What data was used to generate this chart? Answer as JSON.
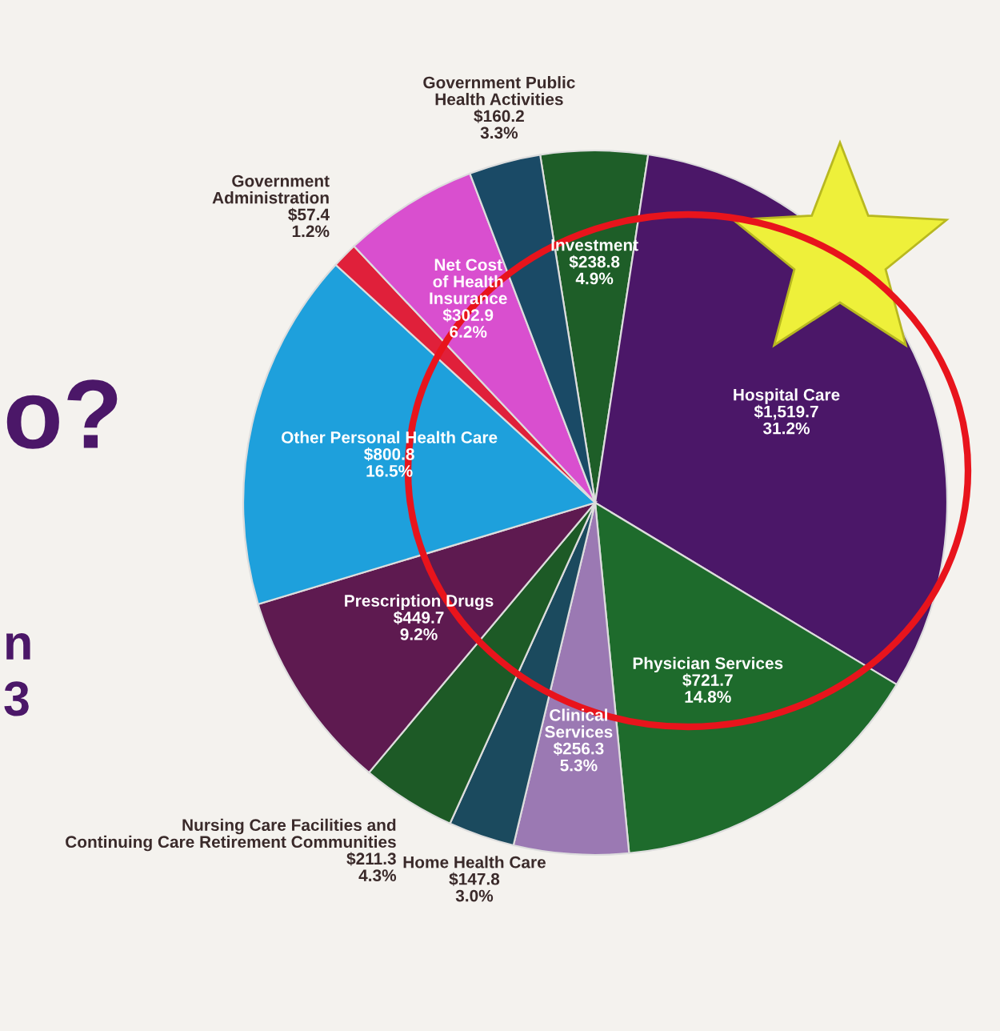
{
  "chart_data": {
    "type": "pie",
    "categories": [
      "Investment",
      "Hospital Care",
      "Physician Services",
      "Clinical\nServices",
      "Home Health Care",
      "Nursing Care Facilities and\nContinuing Care Retirement Communities",
      "Prescription Drugs",
      "Other Personal Health Care",
      "Government\nAdministration",
      "Net Cost\nof Health\nInsurance",
      "Government Public\nHealth Activities"
    ],
    "values": [
      238.8,
      1519.7,
      721.7,
      256.3,
      147.8,
      211.3,
      449.7,
      800.8,
      57.4,
      302.9,
      160.2
    ],
    "value_labels": [
      "$238.8\n4.9%",
      "$1,519.7\n31.2%",
      "$721.7\n14.8%",
      "$256.3\n5.3%",
      "$147.8\n3.0%",
      "$211.3\n4.3%",
      "$449.7\n9.2%",
      "$800.8\n16.5%",
      "$57.4\n1.2%",
      "$302.9\n6.2%",
      "$160.2\n3.3%"
    ],
    "colors": [
      "#1e5e28",
      "#4b1768",
      "#1e6b2c",
      "#9b79b3",
      "#1b4a5e",
      "#1d5a26",
      "#5e1a50",
      "#1ea0dc",
      "#e0203a",
      "#d94fcf",
      "#1a4a66"
    ],
    "annotations": [
      "o?",
      "n",
      "3"
    ],
    "legend": false
  }
}
